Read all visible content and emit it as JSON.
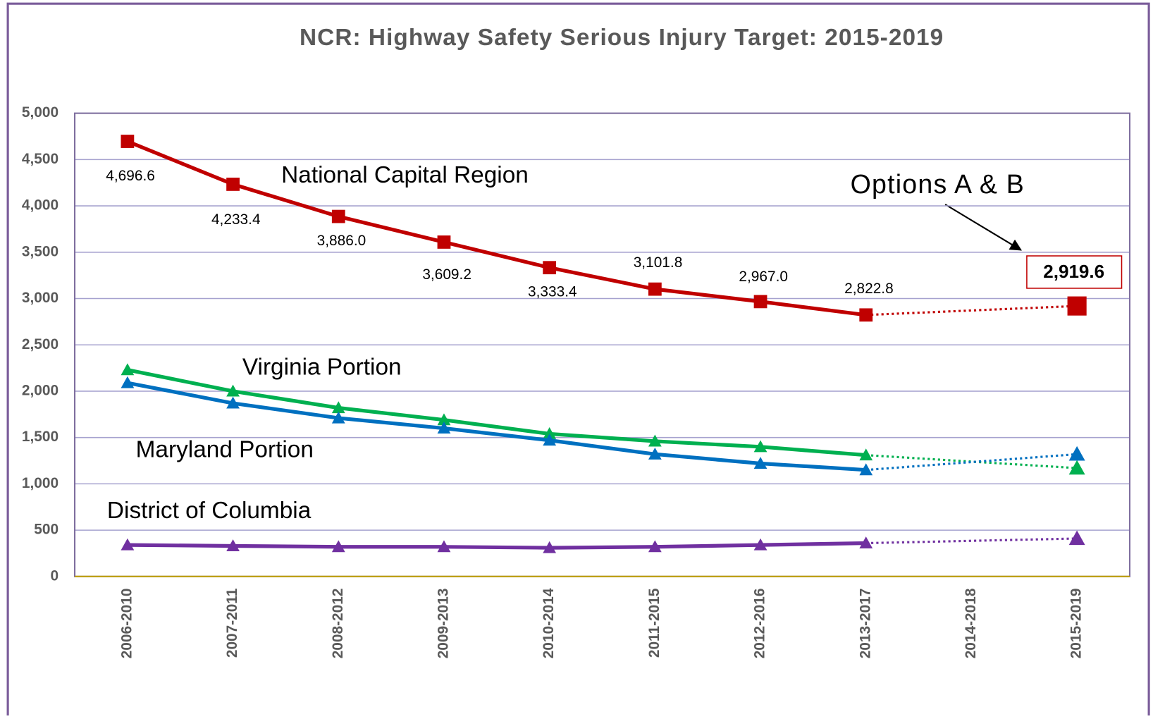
{
  "chart_data": {
    "type": "line",
    "title": "NCR: Highway Safety Serious Injury Target: 2015-2019",
    "categories": [
      "2006-2010",
      "2007-2011",
      "2008-2012",
      "2009-2013",
      "2010-2014",
      "2011-2015",
      "2012-2016",
      "2013-2017",
      "2014-2018",
      "2015-2019"
    ],
    "series": [
      {
        "name": "National Capital Region",
        "color": "#c00000",
        "marker": "square",
        "values": [
          4696.6,
          4233.4,
          3886.0,
          3609.2,
          3333.4,
          3101.8,
          2967.0,
          2822.8,
          null,
          2919.6
        ],
        "value_labels": [
          "4,696.6",
          "4,233.4",
          "3,886.0",
          "3,609.2",
          "3,333.4",
          "3,101.8",
          "2,967.0",
          "2,822.8",
          null,
          "2,919.6"
        ]
      },
      {
        "name": "Virginia Portion",
        "color": "#00b050",
        "marker": "triangle",
        "values": [
          2230,
          2000,
          1820,
          1690,
          1540,
          1460,
          1400,
          1310,
          null,
          1170
        ]
      },
      {
        "name": "Maryland Portion",
        "color": "#0070c0",
        "marker": "triangle",
        "values": [
          2090,
          1870,
          1710,
          1600,
          1470,
          1320,
          1220,
          1150,
          null,
          1320
        ]
      },
      {
        "name": "District of Columbia",
        "color": "#7030a0",
        "marker": "triangle",
        "values": [
          340,
          330,
          320,
          320,
          310,
          320,
          340,
          360,
          null,
          410
        ]
      }
    ],
    "annotations": [
      "Options A & B"
    ],
    "ylim": [
      0,
      5000
    ],
    "yticks": [
      0,
      500,
      {
        "value": 1000,
        "label": "1,000"
      },
      {
        "value": 1500,
        "label": "1,500"
      },
      {
        "value": 2000,
        "label": "2,000"
      },
      {
        "value": 2500,
        "label": "2,500"
      },
      {
        "value": 3000,
        "label": "3,000"
      },
      {
        "value": 3500,
        "label": "3,500"
      },
      {
        "value": 4000,
        "label": "4,000"
      },
      {
        "value": 4500,
        "label": "4,500"
      },
      {
        "value": 5000,
        "label": "5,000"
      }
    ],
    "grid": true
  }
}
